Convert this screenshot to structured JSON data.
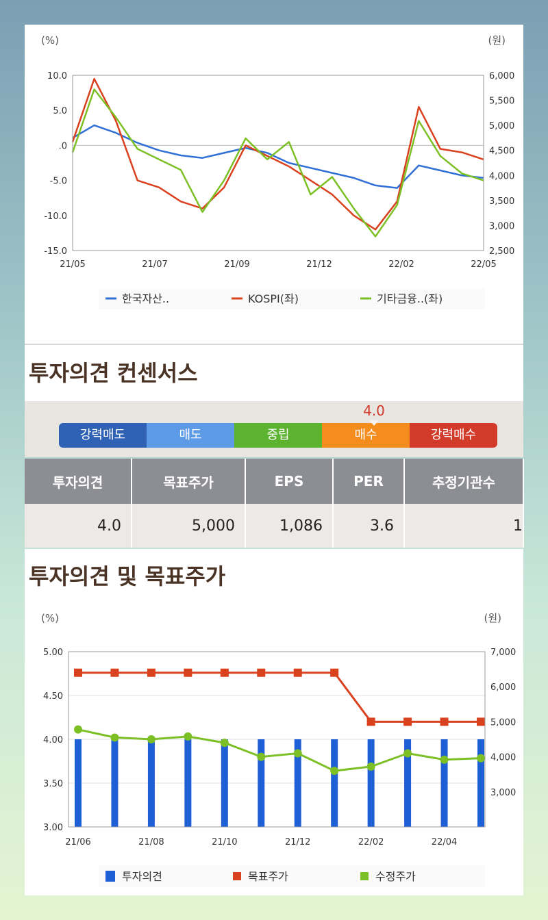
{
  "chart1": {
    "left_unit": "(%)",
    "right_unit": "(원)",
    "y_left_ticks": [
      "10.0",
      "5.0",
      ".0",
      "-5.0",
      "-10.0",
      "-15.0"
    ],
    "y_right_ticks": [
      "6,000",
      "5,500",
      "5,000",
      "4,500",
      "4,000",
      "3,500",
      "3,000",
      "2,500"
    ],
    "x_ticks": [
      "21/05",
      "21/07",
      "21/09",
      "21/12",
      "22/02",
      "22/05"
    ],
    "legend": [
      "한국자산..",
      "KOSPI(좌)",
      "기타금융..(좌)"
    ]
  },
  "consensus": {
    "title": "투자의견 컨센서스",
    "marker_value": "4.0",
    "segments": [
      "강력매도",
      "매도",
      "중립",
      "매수",
      "강력매수"
    ],
    "headers": [
      "투자의견",
      "목표주가",
      "EPS",
      "PER",
      "추정기관수"
    ],
    "values": [
      "4.0",
      "5,000",
      "1,086",
      "3.6",
      "1"
    ]
  },
  "chart2": {
    "title": "투자의견 및 목표주가",
    "left_unit": "(%)",
    "right_unit": "(원)",
    "y_left_ticks": [
      "5.00",
      "4.50",
      "4.00",
      "3.50",
      "3.00"
    ],
    "y_right_ticks": [
      "7,000",
      "6,000",
      "5,000",
      "4,000",
      "3,000"
    ],
    "x_ticks": [
      "21/06",
      "21/08",
      "21/10",
      "21/12",
      "22/02",
      "22/04"
    ],
    "legend": [
      "투자의견",
      "목표주가",
      "수정주가"
    ]
  },
  "chart_data": [
    {
      "type": "line",
      "x_ticks": [
        "21/05",
        "21/07",
        "21/09",
        "21/12",
        "22/02",
        "22/05"
      ],
      "ylim_left": [
        -15,
        10
      ],
      "ylim_right": [
        2500,
        6000
      ],
      "colors": {
        "한국자산..": "#2f6fd6",
        "KOSPI(좌)": "#d9411f",
        "기타금융..(좌)": "#7cc026"
      },
      "series": [
        {
          "name": "한국자산..",
          "axis": "right",
          "values": [
            4750,
            5000,
            4850,
            4650,
            4500,
            4400,
            4350,
            4450,
            4550,
            4450,
            4250,
            4150,
            4050,
            3950,
            3800,
            3750,
            4200,
            4100,
            4000,
            3950
          ]
        },
        {
          "name": "KOSPI(좌)",
          "axis": "left",
          "values": [
            0.5,
            9.5,
            3.5,
            -5.0,
            -6.0,
            -8.0,
            -9.0,
            -6.0,
            0.0,
            -1.5,
            -3.0,
            -5.0,
            -7.0,
            -10.0,
            -12.0,
            -8.0,
            5.5,
            -0.5,
            -1.0,
            -2.0
          ]
        },
        {
          "name": "기타금융..(좌)",
          "axis": "left",
          "values": [
            -1.0,
            8.0,
            4.0,
            -0.5,
            -2.0,
            -3.5,
            -9.5,
            -5.0,
            1.0,
            -2.0,
            0.5,
            -7.0,
            -4.5,
            -9.0,
            -13.0,
            -8.5,
            3.5,
            -1.5,
            -4.0,
            -5.0
          ]
        }
      ]
    },
    {
      "type": "bar",
      "categories": [
        "21/06",
        "21/07",
        "21/08",
        "21/09",
        "21/10",
        "21/11",
        "21/12",
        "22/01",
        "22/02",
        "22/03",
        "22/04",
        "22/05"
      ],
      "ylim_left": [
        3.0,
        5.0
      ],
      "ylim_right": [
        2000,
        7000
      ],
      "colors": {
        "투자의견": "#1f5fd6",
        "목표주가": "#d9411f",
        "수정주가": "#7cc026"
      },
      "series": [
        {
          "name": "투자의견",
          "axis": "left",
          "kind": "bar",
          "values": [
            4.0,
            4.0,
            4.0,
            4.0,
            4.0,
            4.0,
            4.0,
            4.0,
            4.0,
            4.0,
            4.0,
            4.0
          ]
        },
        {
          "name": "목표주가",
          "axis": "right",
          "kind": "line",
          "values": [
            6400,
            6400,
            6400,
            6400,
            6400,
            6400,
            6400,
            6400,
            5000,
            5000,
            5000,
            5000
          ]
        },
        {
          "name": "수정주가",
          "axis": "right",
          "kind": "line",
          "values": [
            4780,
            4550,
            4500,
            4580,
            4400,
            4000,
            4100,
            3600,
            3720,
            4100,
            3920,
            3960
          ]
        }
      ]
    }
  ]
}
